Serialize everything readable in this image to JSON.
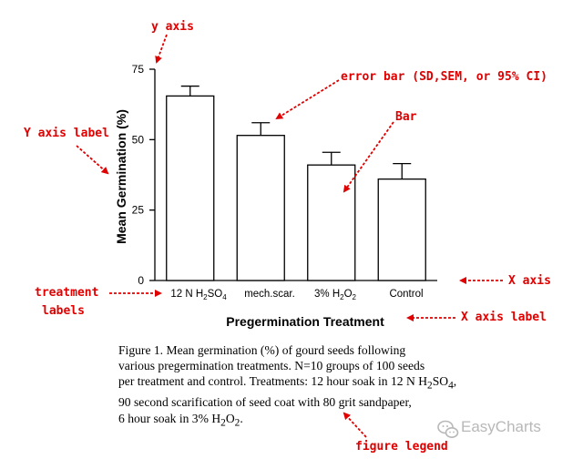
{
  "chart_data": {
    "type": "bar",
    "title": "",
    "categories": [
      "12 N H2SO4",
      "mech.scar.",
      "3% H2O2",
      "Control"
    ],
    "values": [
      65.5,
      51.5,
      41,
      36
    ],
    "error": [
      3.5,
      4.5,
      4.5,
      5.5
    ],
    "ylabel": "Mean Germination (%)",
    "xlabel": "Pregermination Treatment",
    "ylim": [
      0,
      75
    ],
    "yticks": [
      0,
      25,
      50,
      75
    ],
    "grid": false,
    "bar_color": "#ffffff",
    "bar_edge_color": "#000000"
  },
  "category_labels": {
    "h2so4_main": "12 N H",
    "h2so4_sub1": "2",
    "h2so4_mid": "SO",
    "h2so4_sub2": "4",
    "mech": "mech.scar.",
    "h2o2_main": "3% H",
    "h2o2_sub1": "2",
    "h2o2_mid": "O",
    "h2o2_sub2": "2",
    "control": "Control"
  },
  "annotations": {
    "y_axis": "y axis",
    "error_bar": "error bar (SD,SEM, or 95% CI)",
    "bar": "Bar",
    "y_axis_label": "Y axis label",
    "x_axis": "X axis",
    "x_axis_label": "X axis label",
    "treatment_labels_1": "treatment",
    "treatment_labels_2": "labels",
    "figure_legend": "figure legend",
    "color": "#e00000"
  },
  "caption": {
    "line1": "Figure 1. Mean germination (%) of gourd seeds following",
    "line2": "various pregermination treatments. N=10 groups of 100 seeds",
    "line3a": "per treatment and control. Treatments: 12 hour soak in 12 N H",
    "line3b": "2",
    "line3c": "SO",
    "line3d": "4",
    "line3e": ",",
    "line4": "90 second scarification of seed coat with 80 grit sandpaper,",
    "line5a": "6 hour soak in 3% H",
    "line5b": "2",
    "line5c": "O",
    "line5d": "2",
    "line5e": "."
  },
  "watermark": {
    "text": "EasyCharts",
    "icon": "wechat-icon"
  }
}
